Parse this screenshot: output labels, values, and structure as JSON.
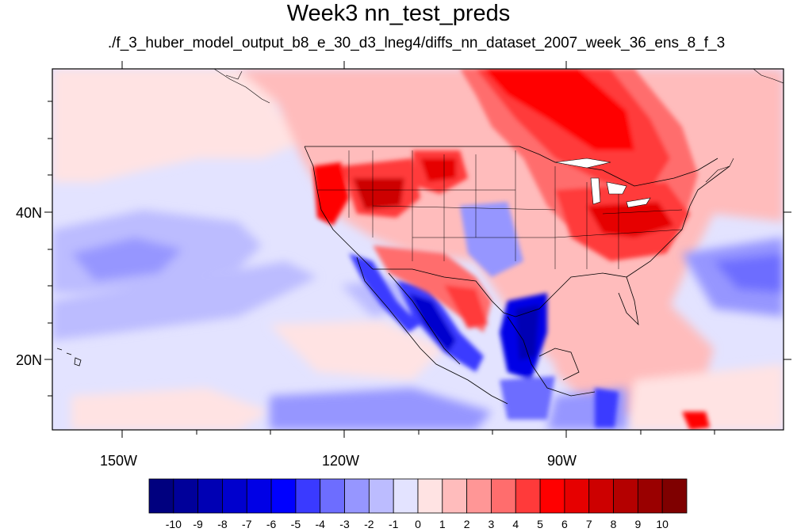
{
  "title": "Week3 nn_test_preds",
  "subtitle": "./f_3_huber_model_output_b8_e_30_d3_lneg4/diffs_nn_dataset_2007_week_36_ens_8_f_3",
  "lon_labels": [
    "150W",
    "120W",
    "90W"
  ],
  "lat_labels": [
    "40N",
    "20N"
  ],
  "colorbar": {
    "labels": [
      "-10",
      "-9",
      "-8",
      "-7",
      "-6",
      "-5",
      "-4",
      "-3",
      "-2",
      "-1",
      "0",
      "1",
      "2",
      "3",
      "4",
      "5",
      "6",
      "7",
      "8",
      "9",
      "10"
    ],
    "colors": [
      "#00007f",
      "#00009a",
      "#0000b4",
      "#0000cd",
      "#0000e6",
      "#0000ff",
      "#3a3aff",
      "#6d6dff",
      "#9696ff",
      "#bcbcff",
      "#e3e3ff",
      "#ffe3e3",
      "#ffbcbc",
      "#ff9696",
      "#ff6d6d",
      "#ff3a3a",
      "#ff0000",
      "#e60000",
      "#cd0000",
      "#b40000",
      "#9a0000",
      "#7f0000"
    ]
  },
  "map": {
    "background_color": "#e3e3ff",
    "region": "contiguous United States, Mexico and eastern Pacific"
  }
}
